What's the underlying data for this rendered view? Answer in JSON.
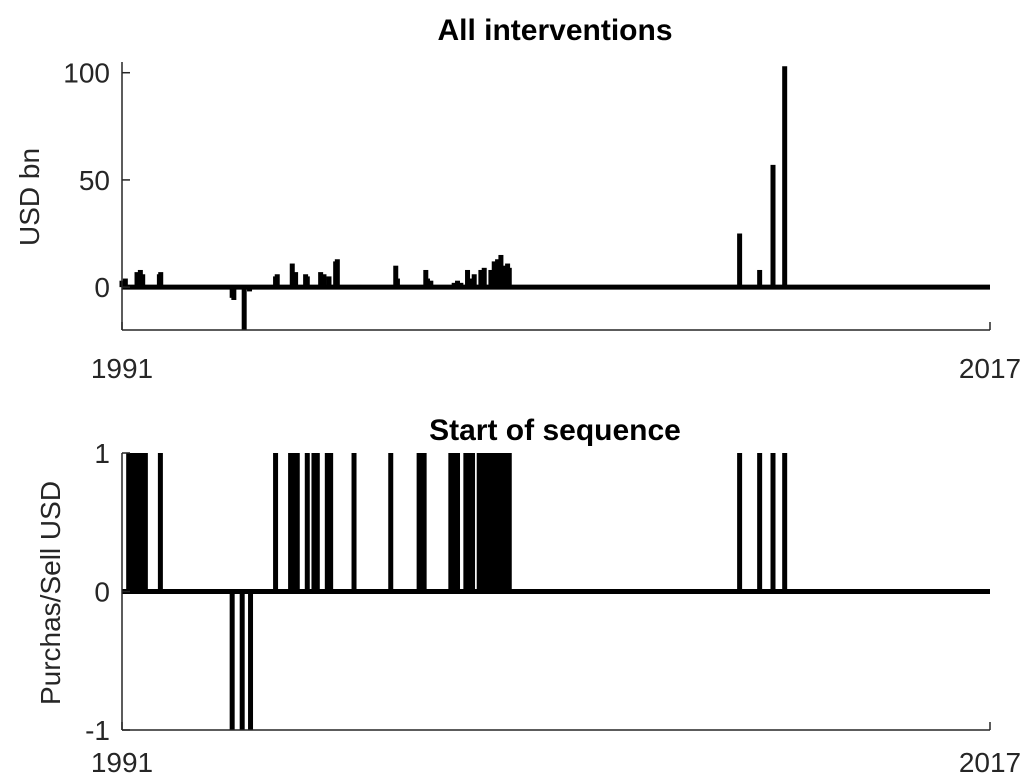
{
  "colors": {
    "bar": "#000000",
    "axis": "#262626",
    "background": "#ffffff"
  },
  "chart_data": [
    {
      "type": "bar",
      "title": "All interventions",
      "xlabel": "",
      "ylabel": "USD bn",
      "xlim": [
        1991,
        2017
      ],
      "ylim": [
        -20,
        100
      ],
      "xticks": [
        {
          "value": 1991,
          "label": "1991"
        },
        {
          "value": 2017,
          "label": "2017"
        }
      ],
      "yticks": [
        {
          "value": 0,
          "label": "0"
        },
        {
          "value": 50,
          "label": "50"
        },
        {
          "value": 100,
          "label": "100"
        }
      ],
      "grid": false,
      "baseline": 0,
      "points": [
        {
          "x": 1991.0,
          "y": 3
        },
        {
          "x": 1991.1,
          "y": 4
        },
        {
          "x": 1991.45,
          "y": 7
        },
        {
          "x": 1991.55,
          "y": 8
        },
        {
          "x": 1991.62,
          "y": 6
        },
        {
          "x": 1992.12,
          "y": 6
        },
        {
          "x": 1992.16,
          "y": 7
        },
        {
          "x": 1994.3,
          "y": -5
        },
        {
          "x": 1994.35,
          "y": -6
        },
        {
          "x": 1994.66,
          "y": -20
        },
        {
          "x": 1994.82,
          "y": -2
        },
        {
          "x": 1995.6,
          "y": 5
        },
        {
          "x": 1995.65,
          "y": 6
        },
        {
          "x": 1996.1,
          "y": 11
        },
        {
          "x": 1996.2,
          "y": 7
        },
        {
          "x": 1996.5,
          "y": 6
        },
        {
          "x": 1996.55,
          "y": 5
        },
        {
          "x": 1996.95,
          "y": 7
        },
        {
          "x": 1997.05,
          "y": 6
        },
        {
          "x": 1997.2,
          "y": 5
        },
        {
          "x": 1997.4,
          "y": 12
        },
        {
          "x": 1997.45,
          "y": 13
        },
        {
          "x": 1998.1,
          "y": 1
        },
        {
          "x": 1999.2,
          "y": 10
        },
        {
          "x": 1999.25,
          "y": 4
        },
        {
          "x": 2000.1,
          "y": 8
        },
        {
          "x": 2000.15,
          "y": 4
        },
        {
          "x": 2000.25,
          "y": 3
        },
        {
          "x": 2000.9,
          "y": 1
        },
        {
          "x": 2000.95,
          "y": 2
        },
        {
          "x": 2001.05,
          "y": 3
        },
        {
          "x": 2001.15,
          "y": 2
        },
        {
          "x": 2001.35,
          "y": 8
        },
        {
          "x": 2001.45,
          "y": 4
        },
        {
          "x": 2001.55,
          "y": 6
        },
        {
          "x": 2001.75,
          "y": 8
        },
        {
          "x": 2001.85,
          "y": 9
        },
        {
          "x": 2002.05,
          "y": 8
        },
        {
          "x": 2002.15,
          "y": 12
        },
        {
          "x": 2002.25,
          "y": 13
        },
        {
          "x": 2002.35,
          "y": 15
        },
        {
          "x": 2002.45,
          "y": 10
        },
        {
          "x": 2002.55,
          "y": 11
        },
        {
          "x": 2002.6,
          "y": 9
        },
        {
          "x": 2009.5,
          "y": 25
        },
        {
          "x": 2010.1,
          "y": 8
        },
        {
          "x": 2010.5,
          "y": 57
        },
        {
          "x": 2010.85,
          "y": 103
        }
      ]
    },
    {
      "type": "bar",
      "title": "Start of sequence",
      "xlabel": "",
      "ylabel": "Purchas/Sell USD",
      "xlim": [
        1991,
        2017
      ],
      "ylim": [
        -1,
        1
      ],
      "xticks": [
        {
          "value": 1991,
          "label": "1991"
        },
        {
          "value": 2017,
          "label": "2017"
        }
      ],
      "yticks": [
        {
          "value": -1,
          "label": "-1"
        },
        {
          "value": 0,
          "label": "0"
        },
        {
          "value": 1,
          "label": "1"
        }
      ],
      "grid": false,
      "baseline": 0,
      "points": [
        {
          "x": 1991.2,
          "y": 1
        },
        {
          "x": 1991.3,
          "y": 1
        },
        {
          "x": 1991.4,
          "y": 1
        },
        {
          "x": 1991.5,
          "y": 1
        },
        {
          "x": 1991.6,
          "y": 1
        },
        {
          "x": 1991.7,
          "y": 1
        },
        {
          "x": 1992.15,
          "y": 1
        },
        {
          "x": 1994.3,
          "y": -1
        },
        {
          "x": 1994.6,
          "y": -1
        },
        {
          "x": 1994.85,
          "y": -1
        },
        {
          "x": 1995.6,
          "y": 1
        },
        {
          "x": 1996.05,
          "y": 1
        },
        {
          "x": 1996.15,
          "y": 1
        },
        {
          "x": 1996.25,
          "y": 1
        },
        {
          "x": 1996.55,
          "y": 1
        },
        {
          "x": 1996.75,
          "y": 1
        },
        {
          "x": 1996.85,
          "y": 1
        },
        {
          "x": 1997.15,
          "y": 1
        },
        {
          "x": 1997.25,
          "y": 1
        },
        {
          "x": 1997.95,
          "y": 1
        },
        {
          "x": 1999.05,
          "y": 1
        },
        {
          "x": 1999.9,
          "y": 1
        },
        {
          "x": 1999.97,
          "y": 1
        },
        {
          "x": 2000.05,
          "y": 1
        },
        {
          "x": 2000.85,
          "y": 1
        },
        {
          "x": 2000.95,
          "y": 1
        },
        {
          "x": 2001.05,
          "y": 1
        },
        {
          "x": 2001.3,
          "y": 1
        },
        {
          "x": 2001.4,
          "y": 1
        },
        {
          "x": 2001.5,
          "y": 1
        },
        {
          "x": 2001.7,
          "y": 1
        },
        {
          "x": 2001.8,
          "y": 1
        },
        {
          "x": 2001.9,
          "y": 1
        },
        {
          "x": 2002.0,
          "y": 1
        },
        {
          "x": 2002.1,
          "y": 1
        },
        {
          "x": 2002.2,
          "y": 1
        },
        {
          "x": 2002.3,
          "y": 1
        },
        {
          "x": 2002.4,
          "y": 1
        },
        {
          "x": 2002.5,
          "y": 1
        },
        {
          "x": 2002.6,
          "y": 1
        },
        {
          "x": 2009.5,
          "y": 1
        },
        {
          "x": 2010.1,
          "y": 1
        },
        {
          "x": 2010.5,
          "y": 1
        },
        {
          "x": 2010.85,
          "y": 1
        }
      ]
    }
  ]
}
